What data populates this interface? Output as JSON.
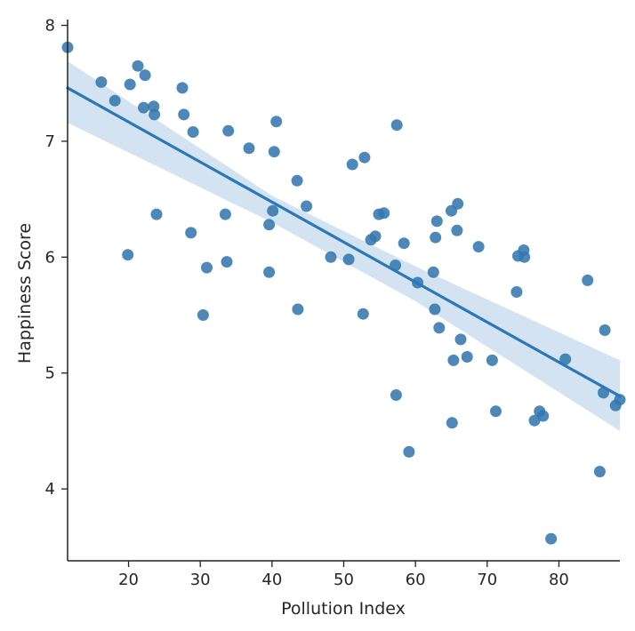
{
  "chart_data": {
    "type": "scatter",
    "title": "",
    "xlabel": "Pollution Index",
    "ylabel": "Happiness Score",
    "xlim": [
      11.5,
      88.5
    ],
    "ylim": [
      3.38,
      8.05
    ],
    "xticks": [
      20,
      30,
      40,
      50,
      60,
      70,
      80
    ],
    "yticks": [
      4,
      5,
      6,
      7,
      8
    ],
    "grid": false,
    "colors": {
      "point": "#3477ae",
      "line": "#2b78b8",
      "band": "#c6d9ec",
      "axis": "#222222"
    },
    "regression": {
      "x": [
        11.5,
        88.5
      ],
      "y": [
        7.46,
        4.8
      ]
    },
    "confidence_band": {
      "x": [
        11.5,
        40,
        60,
        88.5
      ],
      "upper": [
        7.69,
        6.53,
        5.92,
        5.11
      ],
      "lower": [
        7.16,
        6.3,
        5.62,
        4.5
      ]
    },
    "points": [
      [
        11.5,
        7.81
      ],
      [
        16.2,
        7.51
      ],
      [
        18.1,
        7.35
      ],
      [
        20.2,
        7.49
      ],
      [
        21.3,
        7.65
      ],
      [
        22.3,
        7.57
      ],
      [
        22.1,
        7.29
      ],
      [
        23.5,
        7.3
      ],
      [
        23.6,
        7.23
      ],
      [
        27.5,
        7.46
      ],
      [
        27.7,
        7.23
      ],
      [
        29.0,
        7.08
      ],
      [
        19.9,
        6.02
      ],
      [
        23.9,
        6.37
      ],
      [
        28.7,
        6.21
      ],
      [
        30.4,
        5.5
      ],
      [
        30.9,
        5.91
      ],
      [
        33.5,
        6.37
      ],
      [
        33.7,
        5.96
      ],
      [
        33.9,
        7.09
      ],
      [
        36.8,
        6.94
      ],
      [
        40.3,
        6.91
      ],
      [
        40.6,
        7.17
      ],
      [
        40.1,
        6.4
      ],
      [
        39.6,
        6.28
      ],
      [
        39.6,
        5.87
      ],
      [
        43.5,
        6.66
      ],
      [
        43.6,
        5.55
      ],
      [
        44.8,
        6.44
      ],
      [
        48.2,
        6.0
      ],
      [
        50.7,
        5.98
      ],
      [
        51.2,
        6.8
      ],
      [
        52.9,
        6.86
      ],
      [
        52.7,
        5.51
      ],
      [
        53.8,
        6.15
      ],
      [
        54.4,
        6.18
      ],
      [
        54.9,
        6.37
      ],
      [
        55.6,
        6.38
      ],
      [
        57.2,
        5.93
      ],
      [
        57.4,
        7.14
      ],
      [
        57.3,
        4.81
      ],
      [
        58.4,
        6.12
      ],
      [
        59.1,
        4.32
      ],
      [
        60.3,
        5.78
      ],
      [
        62.5,
        5.87
      ],
      [
        62.7,
        5.55
      ],
      [
        62.8,
        6.17
      ],
      [
        63.0,
        6.31
      ],
      [
        63.3,
        5.39
      ],
      [
        65.0,
        6.4
      ],
      [
        65.1,
        4.57
      ],
      [
        65.3,
        5.11
      ],
      [
        65.8,
        6.23
      ],
      [
        65.9,
        6.46
      ],
      [
        66.3,
        5.29
      ],
      [
        67.2,
        5.14
      ],
      [
        68.8,
        6.09
      ],
      [
        70.7,
        5.11
      ],
      [
        71.2,
        4.67
      ],
      [
        74.1,
        5.7
      ],
      [
        74.3,
        6.01
      ],
      [
        75.1,
        6.06
      ],
      [
        75.2,
        6.0
      ],
      [
        76.6,
        4.59
      ],
      [
        77.3,
        4.67
      ],
      [
        77.8,
        4.63
      ],
      [
        78.9,
        3.57
      ],
      [
        80.9,
        5.12
      ],
      [
        84.0,
        5.8
      ],
      [
        85.7,
        4.15
      ],
      [
        86.2,
        4.83
      ],
      [
        86.4,
        5.37
      ],
      [
        87.9,
        4.72
      ],
      [
        88.5,
        4.77
      ]
    ]
  }
}
